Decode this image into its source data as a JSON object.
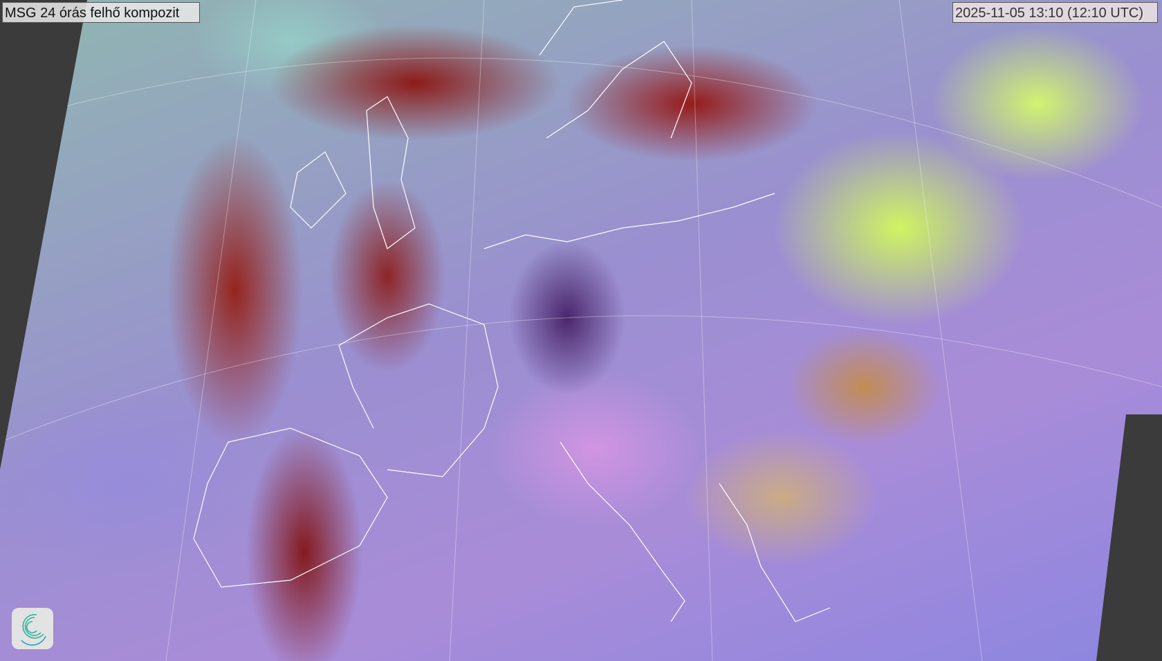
{
  "map": {
    "title": "MSG 24 órás felhő kompozit",
    "timestamp": "2025-11-05 13:10 (12:10 UTC)",
    "logo_icon": "spiral-logo-icon",
    "colors": {
      "background": "#3b3b3b",
      "logo_accent": "#2bb39a"
    }
  }
}
